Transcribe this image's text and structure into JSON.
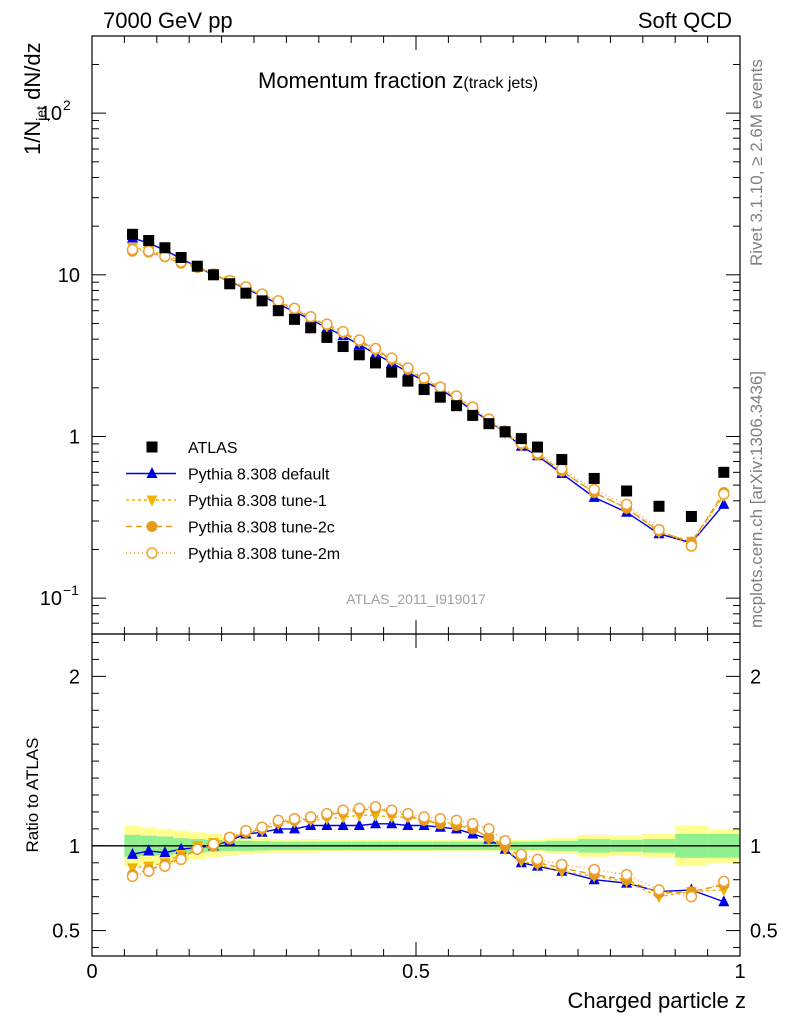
{
  "header": {
    "energy_label": "7000 GeV pp",
    "process_label": "Soft QCD",
    "rivet_label": "Rivet 3.1.10, ≥ 2.6M events",
    "mcplots_label": "mcplots.cern.ch [arXiv:1306.3436]",
    "analysis_label": "ATLAS_2011_I919017"
  },
  "chart_data": [
    {
      "type": "scatter",
      "panel": "main",
      "title_main": "Momentum fraction z",
      "title_sub": "(track jets)",
      "ylabel_pre": "1/N",
      "ylabel_sub": "jet",
      "ylabel_post": " dN/dz",
      "xlabel": "Charged particle z",
      "xlim": [
        0,
        1
      ],
      "ylim": [
        0.06,
        300
      ],
      "yscale": "log",
      "y_ticks": [
        {
          "value": 0.1,
          "base": "10",
          "exp": "−1"
        },
        {
          "value": 1,
          "base": "1",
          "exp": ""
        },
        {
          "value": 10,
          "base": "10",
          "exp": ""
        },
        {
          "value": 100,
          "base": "10",
          "exp": "2"
        }
      ],
      "legend_position": "lower-left",
      "x": [
        0.0625,
        0.0875,
        0.1125,
        0.1375,
        0.1625,
        0.1875,
        0.2125,
        0.2375,
        0.2625,
        0.2875,
        0.3125,
        0.3375,
        0.3625,
        0.3875,
        0.4125,
        0.4375,
        0.4625,
        0.4875,
        0.5125,
        0.5375,
        0.5625,
        0.5875,
        0.6125,
        0.6375,
        0.6625,
        0.6875,
        0.725,
        0.775,
        0.825,
        0.875,
        0.925,
        0.975
      ],
      "series": [
        {
          "name": "ATLAS",
          "marker": "square",
          "color": "#000000",
          "values": [
            17.8,
            16.3,
            14.7,
            12.8,
            11.3,
            10.0,
            8.8,
            7.7,
            6.9,
            6.0,
            5.3,
            4.7,
            4.1,
            3.6,
            3.2,
            2.85,
            2.5,
            2.2,
            1.95,
            1.75,
            1.55,
            1.35,
            1.2,
            1.07,
            0.97,
            0.86,
            0.72,
            0.55,
            0.46,
            0.37,
            0.32,
            0.6
          ]
        },
        {
          "name": "Pythia 8.308 default",
          "marker": "triangle-up",
          "color": "#0000e6",
          "values": [
            16.9,
            15.7,
            14.2,
            12.6,
            11.2,
            10.0,
            9.1,
            8.2,
            7.4,
            6.6,
            5.9,
            5.3,
            4.7,
            4.2,
            3.7,
            3.25,
            2.85,
            2.5,
            2.2,
            1.95,
            1.7,
            1.45,
            1.25,
            1.05,
            0.87,
            0.76,
            0.59,
            0.42,
            0.34,
            0.25,
            0.22,
            0.38
          ]
        },
        {
          "name": "Pythia 8.308 tune-1",
          "marker": "triangle-down",
          "color": "#f0b400",
          "values": [
            14.8,
            14.1,
            13.3,
            12.2,
            11.3,
            10.1,
            9.2,
            8.3,
            7.5,
            6.8,
            6.1,
            5.4,
            4.8,
            4.35,
            3.85,
            3.35,
            2.95,
            2.6,
            2.25,
            2.0,
            1.75,
            1.5,
            1.25,
            1.05,
            0.88,
            0.78,
            0.61,
            0.45,
            0.36,
            0.255,
            0.225,
            0.43
          ]
        },
        {
          "name": "Pythia 8.308 tune-2c",
          "marker": "circle",
          "color": "#e69a1a",
          "values": [
            14.0,
            13.8,
            12.9,
            11.8,
            11.1,
            10.0,
            9.1,
            8.3,
            7.5,
            6.8,
            6.1,
            5.4,
            4.9,
            4.4,
            3.9,
            3.45,
            3.0,
            2.6,
            2.25,
            1.98,
            1.73,
            1.48,
            1.25,
            1.06,
            0.9,
            0.77,
            0.61,
            0.45,
            0.36,
            0.26,
            0.22,
            0.45
          ]
        },
        {
          "name": "Pythia 8.308 tune-2m",
          "marker": "circle-open",
          "color": "#f0a030",
          "values": [
            14.3,
            14.0,
            13.0,
            12.0,
            11.2,
            10.1,
            9.2,
            8.4,
            7.6,
            6.9,
            6.2,
            5.5,
            4.95,
            4.45,
            3.95,
            3.5,
            3.05,
            2.65,
            2.3,
            2.02,
            1.78,
            1.52,
            1.28,
            1.08,
            0.91,
            0.79,
            0.63,
            0.47,
            0.38,
            0.265,
            0.21,
            0.44
          ]
        }
      ]
    },
    {
      "type": "line",
      "panel": "ratio",
      "ylabel": "Ratio to ATLAS",
      "xlabel": "Charged particle z",
      "xlim": [
        0,
        1
      ],
      "ylim": [
        0.35,
        2.25
      ],
      "y_ticks": [
        0.5,
        1,
        2
      ],
      "x_ticks": [
        0,
        0.5,
        1
      ],
      "x": [
        0.0625,
        0.0875,
        0.1125,
        0.1375,
        0.1625,
        0.1875,
        0.2125,
        0.2375,
        0.2625,
        0.2875,
        0.3125,
        0.3375,
        0.3625,
        0.3875,
        0.4125,
        0.4375,
        0.4625,
        0.4875,
        0.5125,
        0.5375,
        0.5625,
        0.5875,
        0.6125,
        0.6375,
        0.6625,
        0.6875,
        0.725,
        0.775,
        0.825,
        0.875,
        0.925,
        0.975
      ],
      "band_edges": [
        0.05,
        0.075,
        0.1,
        0.125,
        0.15,
        0.175,
        0.2,
        0.225,
        0.25,
        0.275,
        0.3,
        0.325,
        0.35,
        0.375,
        0.4,
        0.425,
        0.45,
        0.475,
        0.5,
        0.525,
        0.55,
        0.575,
        0.6,
        0.625,
        0.65,
        0.675,
        0.7,
        0.75,
        0.8,
        0.85,
        0.9,
        0.95,
        1.0
      ],
      "band_inner": [
        0.065,
        0.06,
        0.055,
        0.045,
        0.04,
        0.035,
        0.03,
        0.03,
        0.028,
        0.025,
        0.025,
        0.025,
        0.025,
        0.025,
        0.025,
        0.025,
        0.025,
        0.025,
        0.025,
        0.025,
        0.025,
        0.025,
        0.025,
        0.025,
        0.025,
        0.025,
        0.03,
        0.04,
        0.035,
        0.04,
        0.07,
        0.07
      ],
      "band_outer": [
        0.12,
        0.11,
        0.1,
        0.09,
        0.08,
        0.07,
        0.06,
        0.05,
        0.045,
        0.04,
        0.04,
        0.04,
        0.035,
        0.035,
        0.035,
        0.035,
        0.035,
        0.035,
        0.035,
        0.035,
        0.035,
        0.035,
        0.035,
        0.035,
        0.035,
        0.035,
        0.045,
        0.065,
        0.06,
        0.07,
        0.12,
        0.1
      ],
      "band_colors": {
        "inner": "#90f090",
        "outer": "#ffff90"
      },
      "series": [
        {
          "name": "Pythia 8.308 default",
          "marker": "triangle-up",
          "color": "#0000e6",
          "dash": "",
          "values": [
            0.95,
            0.97,
            0.96,
            0.98,
            0.99,
            1.0,
            1.03,
            1.07,
            1.08,
            1.1,
            1.1,
            1.12,
            1.12,
            1.12,
            1.12,
            1.13,
            1.13,
            1.12,
            1.12,
            1.11,
            1.1,
            1.07,
            1.04,
            0.98,
            0.9,
            0.88,
            0.85,
            0.8,
            0.78,
            0.73,
            0.74,
            0.67
          ]
        },
        {
          "name": "Pythia 8.308 tune-1",
          "marker": "triangle-down",
          "color": "#f0b400",
          "dash": "3,3",
          "values": [
            0.87,
            0.88,
            0.9,
            0.95,
            1.0,
            1.02,
            1.05,
            1.08,
            1.09,
            1.13,
            1.14,
            1.15,
            1.16,
            1.17,
            1.18,
            1.18,
            1.17,
            1.17,
            1.15,
            1.14,
            1.13,
            1.11,
            1.04,
            0.98,
            0.91,
            0.89,
            0.85,
            0.82,
            0.79,
            0.7,
            0.73,
            0.74
          ]
        },
        {
          "name": "Pythia 8.308 tune-2c",
          "marker": "circle",
          "color": "#e69a1a",
          "dash": "6,4",
          "values": [
            0.83,
            0.86,
            0.89,
            0.93,
            0.98,
            1.0,
            1.04,
            1.08,
            1.1,
            1.14,
            1.15,
            1.16,
            1.18,
            1.2,
            1.21,
            1.22,
            1.2,
            1.18,
            1.15,
            1.13,
            1.12,
            1.1,
            1.05,
            1.0,
            0.93,
            0.9,
            0.87,
            0.83,
            0.8,
            0.72,
            0.73,
            0.77
          ]
        },
        {
          "name": "Pythia 8.308 tune-2m",
          "marker": "circle-open",
          "color": "#f0a030",
          "dash": "1,3",
          "values": [
            0.82,
            0.85,
            0.88,
            0.92,
            0.98,
            1.01,
            1.05,
            1.09,
            1.11,
            1.15,
            1.16,
            1.17,
            1.19,
            1.21,
            1.22,
            1.23,
            1.21,
            1.19,
            1.17,
            1.16,
            1.15,
            1.13,
            1.1,
            1.03,
            0.95,
            0.92,
            0.89,
            0.86,
            0.83,
            0.74,
            0.7,
            0.79
          ]
        }
      ]
    }
  ]
}
